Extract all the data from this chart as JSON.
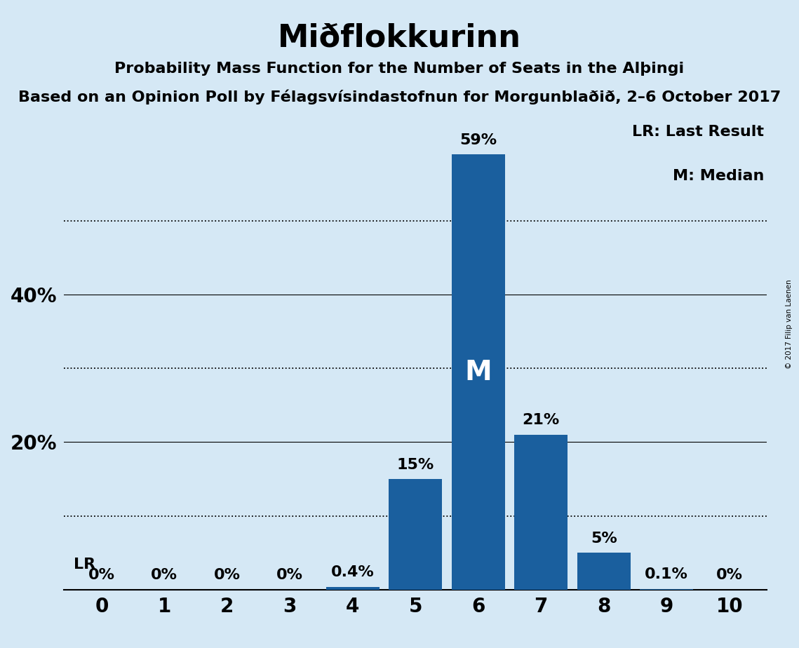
{
  "title": "Miðflokkurinn",
  "subtitle1": "Probability Mass Function for the Number of Seats in the Alþingi",
  "subtitle2": "Based on an Opinion Poll by Félagsvísindastofnun for Morgunblaðið, 2–6 October 2017",
  "copyright": "© 2017 Filip van Laenen",
  "categories": [
    0,
    1,
    2,
    3,
    4,
    5,
    6,
    7,
    8,
    9,
    10
  ],
  "values": [
    0.0,
    0.0,
    0.0,
    0.0,
    0.4,
    15.0,
    59.0,
    21.0,
    5.0,
    0.1,
    0.0
  ],
  "labels": [
    "0%",
    "0%",
    "0%",
    "0%",
    "0.4%",
    "15%",
    "59%",
    "21%",
    "5%",
    "0.1%",
    "0%"
  ],
  "bar_color": "#1a5f9e",
  "median_seat": 6,
  "median_label": "M",
  "lr_label": "LR",
  "background_color": "#d5e8f5",
  "ylim": [
    0,
    65
  ],
  "dotted_lines": [
    10,
    30,
    50
  ],
  "solid_lines": [
    20,
    40
  ],
  "legend_lr": "LR: Last Result",
  "legend_m": "M: Median",
  "title_fontsize": 32,
  "subtitle_fontsize": 16,
  "label_fontsize": 16,
  "tick_fontsize": 20,
  "median_fontsize": 28
}
